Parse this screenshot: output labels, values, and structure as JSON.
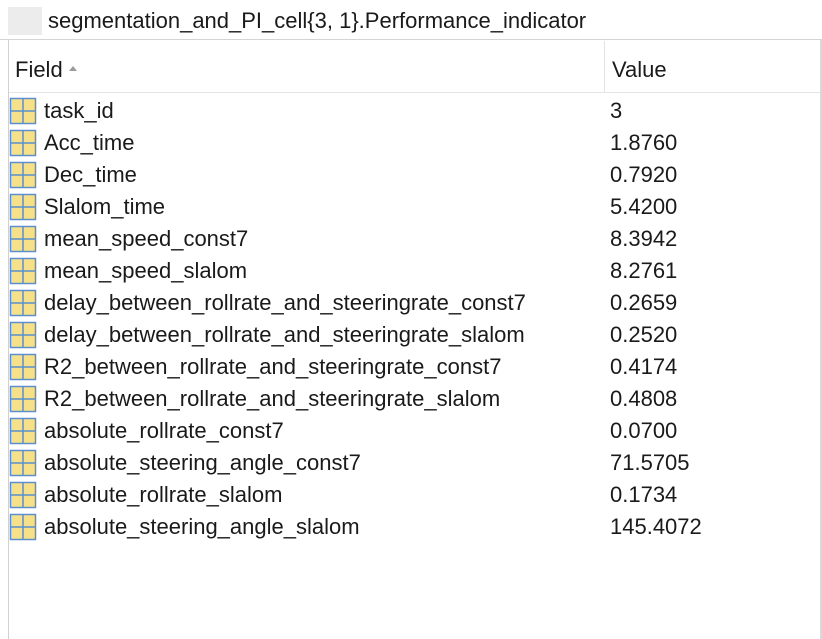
{
  "window": {
    "title": "segmentation_and_PI_cell{3, 1}.Performance_indicator"
  },
  "table": {
    "columns": {
      "field": "Field",
      "value": "Value"
    },
    "sort": "ascending-by-field",
    "rows": [
      {
        "field": "task_id",
        "value": "3",
        "icon": "struct-field-icon"
      },
      {
        "field": "Acc_time",
        "value": "1.8760",
        "icon": "struct-field-icon"
      },
      {
        "field": "Dec_time",
        "value": "0.7920",
        "icon": "struct-field-icon"
      },
      {
        "field": "Slalom_time",
        "value": "5.4200",
        "icon": "struct-field-icon"
      },
      {
        "field": "mean_speed_const7",
        "value": "8.3942",
        "icon": "struct-field-icon"
      },
      {
        "field": "mean_speed_slalom",
        "value": "8.2761",
        "icon": "struct-field-icon"
      },
      {
        "field": "delay_between_rollrate_and_steeringrate_const7",
        "value": "0.2659",
        "icon": "struct-field-icon"
      },
      {
        "field": "delay_between_rollrate_and_steeringrate_slalom",
        "value": "0.2520",
        "icon": "struct-field-icon"
      },
      {
        "field": "R2_between_rollrate_and_steeringrate_const7",
        "value": "0.4174",
        "icon": "struct-field-icon"
      },
      {
        "field": "R2_between_rollrate_and_steeringrate_slalom",
        "value": "0.4808",
        "icon": "struct-field-icon"
      },
      {
        "field": "absolute_rollrate_const7",
        "value": "0.0700",
        "icon": "struct-field-icon"
      },
      {
        "field": "absolute_steering_angle_const7",
        "value": "71.5705",
        "icon": "struct-field-icon"
      },
      {
        "field": "absolute_rollrate_slalom",
        "value": "0.1734",
        "icon": "struct-field-icon"
      },
      {
        "field": "absolute_steering_angle_slalom",
        "value": "145.4072",
        "icon": "struct-field-icon"
      }
    ]
  },
  "colors": {
    "icon_fill": "#f7e08a",
    "icon_border": "#c9a227",
    "icon_grid": "#5a8fd0",
    "gridline": "#e4e4e4"
  }
}
